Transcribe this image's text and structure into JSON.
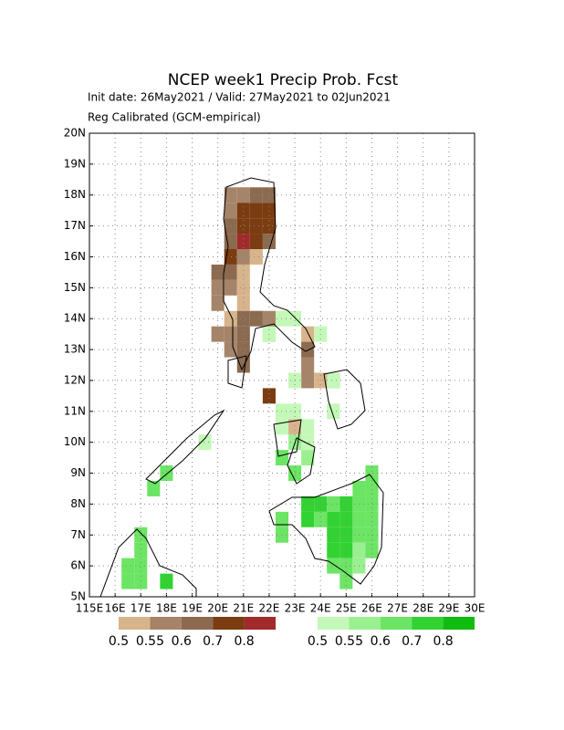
{
  "chart_data": {
    "type": "gridmap",
    "title": "NCEP week1 Precip Prob. Fcst",
    "subtitle": "Init date: 26May2021 / Valid: 27May2021 to 02Jun2021",
    "note": "Reg Calibrated (GCM-empirical)",
    "xlim": [
      115,
      130
    ],
    "ylim": [
      5,
      20
    ],
    "xticks": [
      {
        "value": 115,
        "label": "115E"
      },
      {
        "value": 116,
        "label": "16E"
      },
      {
        "value": 117,
        "label": "17E"
      },
      {
        "value": 118,
        "label": "18E"
      },
      {
        "value": 119,
        "label": "19E"
      },
      {
        "value": 120,
        "label": "20E"
      },
      {
        "value": 121,
        "label": "21E"
      },
      {
        "value": 122,
        "label": "22E"
      },
      {
        "value": 123,
        "label": "23E"
      },
      {
        "value": 124,
        "label": "24E"
      },
      {
        "value": 125,
        "label": "25E"
      },
      {
        "value": 126,
        "label": "26E"
      },
      {
        "value": 127,
        "label": "27E"
      },
      {
        "value": 128,
        "label": "28E"
      },
      {
        "value": 129,
        "label": "29E"
      },
      {
        "value": 130,
        "label": "30E"
      }
    ],
    "yticks": [
      {
        "value": 5,
        "label": "5N"
      },
      {
        "value": 6,
        "label": "6N"
      },
      {
        "value": 7,
        "label": "7N"
      },
      {
        "value": 8,
        "label": "8N"
      },
      {
        "value": 9,
        "label": "9N"
      },
      {
        "value": 10,
        "label": "10N"
      },
      {
        "value": 11,
        "label": "11N"
      },
      {
        "value": 12,
        "label": "12N"
      },
      {
        "value": 13,
        "label": "13N"
      },
      {
        "value": 14,
        "label": "14N"
      },
      {
        "value": 15,
        "label": "15N"
      },
      {
        "value": 16,
        "label": "16N"
      },
      {
        "value": 17,
        "label": "17N"
      },
      {
        "value": 18,
        "label": "18N"
      },
      {
        "value": 19,
        "label": "19N"
      },
      {
        "value": 20,
        "label": "20N"
      }
    ],
    "grid": true,
    "cell_size": 0.5,
    "dry_colorbar": {
      "thresholds": [
        0.5,
        0.55,
        0.6,
        0.7,
        0.8
      ],
      "colors": [
        "#d8b48c",
        "#a58469",
        "#8b6a50",
        "#7a3c10",
        "#a12a2a"
      ]
    },
    "wet_colorbar": {
      "thresholds": [
        0.5,
        0.55,
        0.6,
        0.7,
        0.8
      ],
      "colors": [
        "#c4f8b8",
        "#9af090",
        "#6ce464",
        "#32d232",
        "#10bc10"
      ]
    },
    "dry_cells": [
      [
        120.5,
        18.0,
        0.55
      ],
      [
        121.0,
        18.0,
        0.55
      ],
      [
        121.5,
        18.0,
        0.6
      ],
      [
        122.0,
        18.0,
        0.6
      ],
      [
        120.5,
        17.5,
        0.55
      ],
      [
        121.0,
        17.5,
        0.7
      ],
      [
        121.5,
        17.5,
        0.7
      ],
      [
        122.0,
        17.5,
        0.7
      ],
      [
        120.5,
        17.0,
        0.6
      ],
      [
        121.0,
        17.0,
        0.7
      ],
      [
        121.5,
        17.0,
        0.7
      ],
      [
        122.0,
        17.0,
        0.7
      ],
      [
        120.5,
        16.5,
        0.6
      ],
      [
        121.0,
        16.5,
        0.8
      ],
      [
        121.5,
        16.5,
        0.7
      ],
      [
        122.0,
        16.5,
        0.6
      ],
      [
        120.5,
        16.0,
        0.7
      ],
      [
        121.0,
        16.0,
        0.55
      ],
      [
        121.5,
        16.0,
        0.5
      ],
      [
        120.0,
        15.5,
        0.6
      ],
      [
        120.5,
        15.5,
        0.6
      ],
      [
        121.0,
        15.5,
        0.5
      ],
      [
        120.0,
        15.0,
        0.55
      ],
      [
        120.5,
        15.0,
        0.55
      ],
      [
        121.0,
        15.0,
        0.5
      ],
      [
        120.0,
        14.5,
        0.55
      ],
      [
        121.0,
        14.5,
        0.5
      ],
      [
        120.5,
        14.0,
        0.5
      ],
      [
        121.0,
        14.0,
        0.6
      ],
      [
        121.5,
        14.0,
        0.6
      ],
      [
        122.0,
        14.0,
        0.55
      ],
      [
        120.0,
        13.5,
        0.55
      ],
      [
        120.5,
        13.5,
        0.55
      ],
      [
        121.0,
        13.5,
        0.6
      ],
      [
        122.0,
        13.5,
        0.55
      ],
      [
        123.5,
        13.5,
        0.5
      ],
      [
        120.5,
        13.0,
        0.55
      ],
      [
        121.0,
        13.0,
        0.6
      ],
      [
        123.5,
        13.0,
        0.6
      ],
      [
        121.0,
        12.5,
        0.6
      ],
      [
        123.5,
        12.5,
        0.55
      ],
      [
        123.5,
        12.0,
        0.55
      ],
      [
        124.0,
        12.0,
        0.5
      ],
      [
        124.5,
        12.0,
        0.55
      ],
      [
        122.0,
        11.5,
        0.7
      ],
      [
        123.0,
        10.5,
        0.5
      ]
    ],
    "wet_cells": [
      [
        122.5,
        14.0,
        0.5
      ],
      [
        123.0,
        14.0,
        0.5
      ],
      [
        122.0,
        13.5,
        0.5
      ],
      [
        124.0,
        13.5,
        0.5
      ],
      [
        123.0,
        12.0,
        0.5
      ],
      [
        124.5,
        12.0,
        0.5
      ],
      [
        122.5,
        11.0,
        0.5
      ],
      [
        123.0,
        11.0,
        0.5
      ],
      [
        124.5,
        11.0,
        0.5
      ],
      [
        122.5,
        10.5,
        0.5
      ],
      [
        123.5,
        10.5,
        0.5
      ],
      [
        119.5,
        10.0,
        0.5
      ],
      [
        123.0,
        10.0,
        0.55
      ],
      [
        123.5,
        10.0,
        0.5
      ],
      [
        122.5,
        9.5,
        0.6
      ],
      [
        123.5,
        9.5,
        0.55
      ],
      [
        118.0,
        9.0,
        0.6
      ],
      [
        123.0,
        9.0,
        0.6
      ],
      [
        126.0,
        9.0,
        0.6
      ],
      [
        117.5,
        8.5,
        0.6
      ],
      [
        125.5,
        8.5,
        0.6
      ],
      [
        126.0,
        8.5,
        0.6
      ],
      [
        123.5,
        8.0,
        0.7
      ],
      [
        124.0,
        8.0,
        0.7
      ],
      [
        124.5,
        8.0,
        0.6
      ],
      [
        125.0,
        8.0,
        0.7
      ],
      [
        125.5,
        8.0,
        0.6
      ],
      [
        126.0,
        8.0,
        0.6
      ],
      [
        122.5,
        7.5,
        0.6
      ],
      [
        123.5,
        7.5,
        0.7
      ],
      [
        124.0,
        7.5,
        0.6
      ],
      [
        124.5,
        7.5,
        0.7
      ],
      [
        125.0,
        7.5,
        0.7
      ],
      [
        125.5,
        7.5,
        0.6
      ],
      [
        126.0,
        7.5,
        0.6
      ],
      [
        117.0,
        7.0,
        0.6
      ],
      [
        122.5,
        7.0,
        0.6
      ],
      [
        124.5,
        7.0,
        0.7
      ],
      [
        125.0,
        7.0,
        0.7
      ],
      [
        125.5,
        7.0,
        0.6
      ],
      [
        126.0,
        7.0,
        0.6
      ],
      [
        117.0,
        6.5,
        0.6
      ],
      [
        124.5,
        6.5,
        0.7
      ],
      [
        125.0,
        6.5,
        0.7
      ],
      [
        125.5,
        6.5,
        0.55
      ],
      [
        126.0,
        6.5,
        0.6
      ],
      [
        116.5,
        6.0,
        0.6
      ],
      [
        117.0,
        6.0,
        0.6
      ],
      [
        124.5,
        6.0,
        0.6
      ],
      [
        125.0,
        6.0,
        0.6
      ],
      [
        125.5,
        6.0,
        0.55
      ],
      [
        116.5,
        5.5,
        0.6
      ],
      [
        117.0,
        5.5,
        0.6
      ],
      [
        118.0,
        5.5,
        0.7
      ],
      [
        125.0,
        5.5,
        0.6
      ]
    ]
  }
}
